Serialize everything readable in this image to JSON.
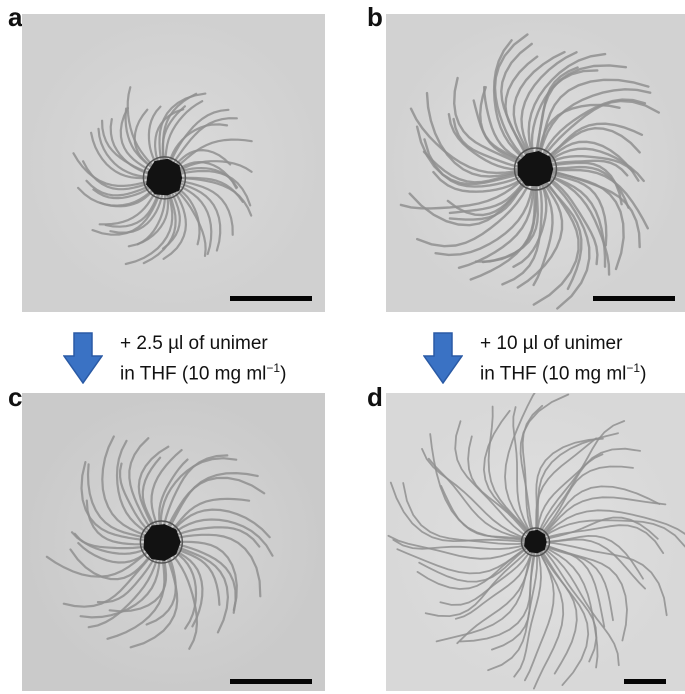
{
  "panels": {
    "a": {
      "label": "a"
    },
    "b": {
      "label": "b"
    },
    "c": {
      "label": "c"
    },
    "d": {
      "label": "d"
    }
  },
  "annotations": {
    "left": {
      "line1": "+ 2.5 µl of unimer",
      "line2_prefix": "in THF (10 mg ml",
      "line2_sup": "−1",
      "line2_suffix": ")"
    },
    "right": {
      "line1": "+ 10 µl of unimer",
      "line2_prefix": "in THF (10 mg ml",
      "line2_sup": "−1",
      "line2_suffix": ")"
    }
  },
  "colors": {
    "arrow": "#3a72c4",
    "arrow_edge": "#2a5aa5",
    "background": "#d6d6d6",
    "fiber": "#9c9c9c",
    "core": "#121212"
  },
  "icons": {
    "left_arrow": "down-arrow-icon",
    "right_arrow": "down-arrow-icon"
  }
}
